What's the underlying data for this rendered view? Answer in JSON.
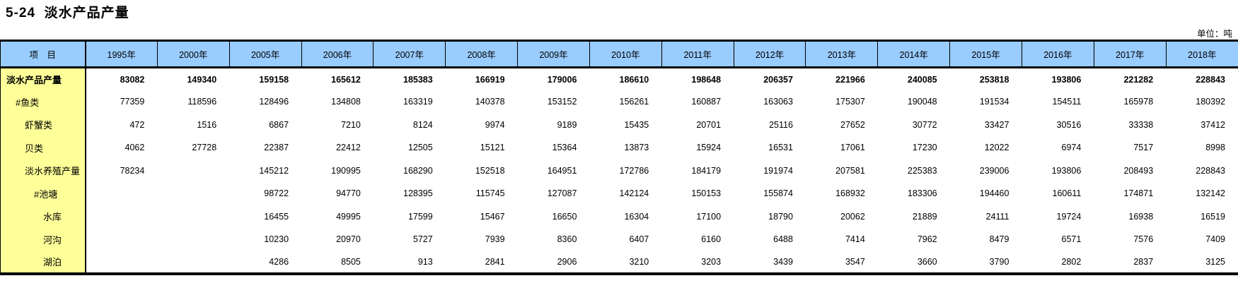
{
  "page": {
    "title": "5-24  淡水产品产量",
    "unit_label": "单位：吨"
  },
  "colors": {
    "header_bg": "#99CCFF",
    "label_column_bg": "#FFFF99",
    "border": "#000000"
  },
  "table": {
    "item_header": "项　目",
    "year_headers": [
      "1995年",
      "2000年",
      "2005年",
      "2006年",
      "2007年",
      "2008年",
      "2009年",
      "2010年",
      "2011年",
      "2012年",
      "2013年",
      "2014年",
      "2015年",
      "2016年",
      "2017年",
      "2018年"
    ],
    "rows": [
      {
        "label": "淡水产品产量",
        "level": 0,
        "bold": true,
        "values": [
          "83082",
          "149340",
          "159158",
          "165612",
          "185383",
          "166919",
          "179006",
          "186610",
          "198648",
          "206357",
          "221966",
          "240085",
          "253818",
          "193806",
          "221282",
          "228843"
        ]
      },
      {
        "label": "#鱼类",
        "level": 1,
        "bold": false,
        "values": [
          "77359",
          "118596",
          "128496",
          "134808",
          "163319",
          "140378",
          "153152",
          "156261",
          "160887",
          "163063",
          "175307",
          "190048",
          "191534",
          "154511",
          "165978",
          "180392"
        ]
      },
      {
        "label": "虾蟹类",
        "level": 2,
        "bold": false,
        "values": [
          "472",
          "1516",
          "6867",
          "7210",
          "8124",
          "9974",
          "9189",
          "15435",
          "20701",
          "25116",
          "27652",
          "30772",
          "33427",
          "30516",
          "33338",
          "37412"
        ]
      },
      {
        "label": "贝类",
        "level": 2,
        "bold": false,
        "values": [
          "4062",
          "27728",
          "22387",
          "22412",
          "12505",
          "15121",
          "15364",
          "13873",
          "15924",
          "16531",
          "17061",
          "17230",
          "12022",
          "6974",
          "7517",
          "8998"
        ]
      },
      {
        "label": "淡水养殖产量",
        "level": 2,
        "bold": false,
        "values": [
          "78234",
          "",
          "145212",
          "190995",
          "168290",
          "152518",
          "164951",
          "172786",
          "184179",
          "191974",
          "207581",
          "225383",
          "239006",
          "193806",
          "208493",
          "228843"
        ]
      },
      {
        "label": "#池塘",
        "level": 3,
        "bold": false,
        "values": [
          "",
          "",
          "98722",
          "94770",
          "128395",
          "115745",
          "127087",
          "142124",
          "150153",
          "155874",
          "168932",
          "183306",
          "194460",
          "160611",
          "174871",
          "132142"
        ]
      },
      {
        "label": "水库",
        "level": 4,
        "bold": false,
        "values": [
          "",
          "",
          "16455",
          "49995",
          "17599",
          "15467",
          "16650",
          "16304",
          "17100",
          "18790",
          "20062",
          "21889",
          "24111",
          "19724",
          "16938",
          "16519"
        ]
      },
      {
        "label": "河沟",
        "level": 4,
        "bold": false,
        "values": [
          "",
          "",
          "10230",
          "20970",
          "5727",
          "7939",
          "8360",
          "6407",
          "6160",
          "6488",
          "7414",
          "7962",
          "8479",
          "6571",
          "7576",
          "7409"
        ]
      },
      {
        "label": "湖泊",
        "level": 4,
        "bold": false,
        "values": [
          "",
          "",
          "4286",
          "8505",
          "913",
          "2841",
          "2906",
          "3210",
          "3203",
          "3439",
          "3547",
          "3660",
          "3790",
          "2802",
          "2837",
          "3125"
        ]
      }
    ]
  }
}
